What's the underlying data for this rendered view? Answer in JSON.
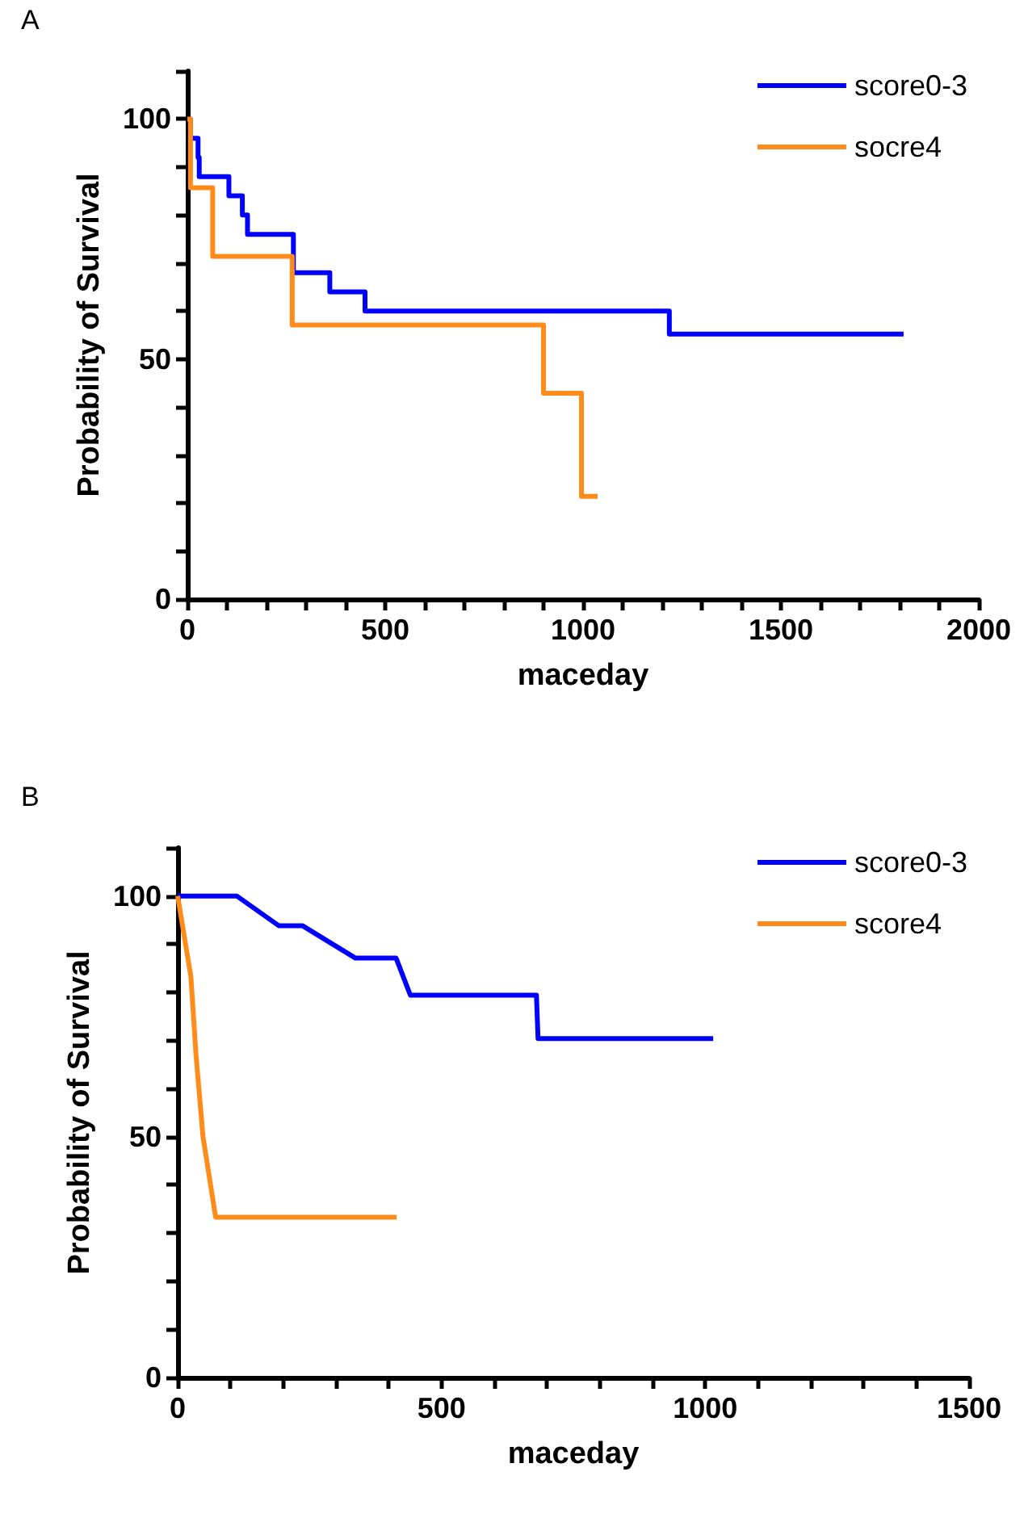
{
  "chart_data": [
    {
      "type": "step",
      "title": "A",
      "xlabel": "maceday",
      "ylabel": "Probability of Survival",
      "xlim": [
        0,
        2000
      ],
      "ylim": [
        0,
        110
      ],
      "xticks": [
        0,
        {
          "value": 100,
          "label": null
        },
        {
          "value": 200,
          "label": null
        },
        {
          "value": 300,
          "label": null
        },
        {
          "value": 400,
          "label": null
        },
        500,
        {
          "value": 600,
          "label": null
        },
        {
          "value": 700,
          "label": null
        },
        {
          "value": 800,
          "label": null
        },
        {
          "value": 900,
          "label": null
        },
        1000,
        {
          "value": 1100,
          "label": null
        },
        {
          "value": 1200,
          "label": null
        },
        {
          "value": 1300,
          "label": null
        },
        {
          "value": 1400,
          "label": null
        },
        1500,
        {
          "value": 1600,
          "label": null
        },
        {
          "value": 1700,
          "label": null
        },
        {
          "value": 1800,
          "label": null
        },
        {
          "value": 1900,
          "label": null
        },
        2000
      ],
      "yticks": [
        0,
        {
          "value": 10,
          "label": null
        },
        {
          "value": 20,
          "label": null
        },
        {
          "value": 30,
          "label": null
        },
        {
          "value": 40,
          "label": null
        },
        50,
        {
          "value": 60,
          "label": null
        },
        {
          "value": 70,
          "label": null
        },
        {
          "value": 80,
          "label": null
        },
        {
          "value": 90,
          "label": null
        },
        100,
        {
          "value": 110,
          "label": null
        }
      ],
      "legend": "top right",
      "grid": false,
      "line_style": "solid",
      "series": [
        {
          "name": "score0-3",
          "color": "#0000ff",
          "x": [
            0,
            8,
            27,
            30,
            105,
            139,
            152,
            268,
            360,
            449,
            1218,
            1810
          ],
          "values": [
            100,
            96,
            92,
            88,
            84,
            80,
            76,
            68,
            64,
            60,
            55.2,
            55.2
          ]
        },
        {
          "name": "socre4",
          "color": "#ff8c1a",
          "x": [
            0,
            8,
            64,
            265,
            900,
            996,
            1037
          ],
          "values": [
            100,
            85.7,
            71.4,
            57.1,
            42.9,
            21.4,
            21.4
          ]
        }
      ]
    },
    {
      "type": "line",
      "title": "B",
      "xlabel": "maceday",
      "ylabel": "Probability of Survival",
      "xlim": [
        0,
        1500
      ],
      "ylim": [
        0,
        110
      ],
      "xticks": [
        0,
        {
          "value": 100,
          "label": null
        },
        {
          "value": 200,
          "label": null
        },
        {
          "value": 300,
          "label": null
        },
        {
          "value": 400,
          "label": null
        },
        500,
        {
          "value": 600,
          "label": null
        },
        {
          "value": 700,
          "label": null
        },
        {
          "value": 800,
          "label": null
        },
        {
          "value": 900,
          "label": null
        },
        1000,
        {
          "value": 1100,
          "label": null
        },
        {
          "value": 1200,
          "label": null
        },
        {
          "value": 1300,
          "label": null
        },
        {
          "value": 1400,
          "label": null
        },
        1500
      ],
      "yticks": [
        0,
        {
          "value": 10,
          "label": null
        },
        {
          "value": 20,
          "label": null
        },
        {
          "value": 30,
          "label": null
        },
        {
          "value": 40,
          "label": null
        },
        50,
        {
          "value": 60,
          "label": null
        },
        {
          "value": 70,
          "label": null
        },
        {
          "value": 80,
          "label": null
        },
        {
          "value": 90,
          "label": null
        },
        100,
        {
          "value": 110,
          "label": null
        }
      ],
      "legend": "top right",
      "grid": false,
      "line_style": "solid",
      "series": [
        {
          "name": "score0-3",
          "color": "#0000ff",
          "x": [
            0,
            112,
            192,
            237,
            337,
            414,
            441,
            680,
            683,
            1015
          ],
          "values": [
            100,
            100,
            93.8,
            93.8,
            87.1,
            87.1,
            79.4,
            79.4,
            70.4,
            70.4
          ]
        },
        {
          "name": "score4",
          "color": "#ff8c1a",
          "x": [
            0,
            25,
            35,
            48,
            72,
            415
          ],
          "values": [
            100,
            83.3,
            66.7,
            50,
            33.3,
            33.3
          ]
        }
      ]
    }
  ]
}
